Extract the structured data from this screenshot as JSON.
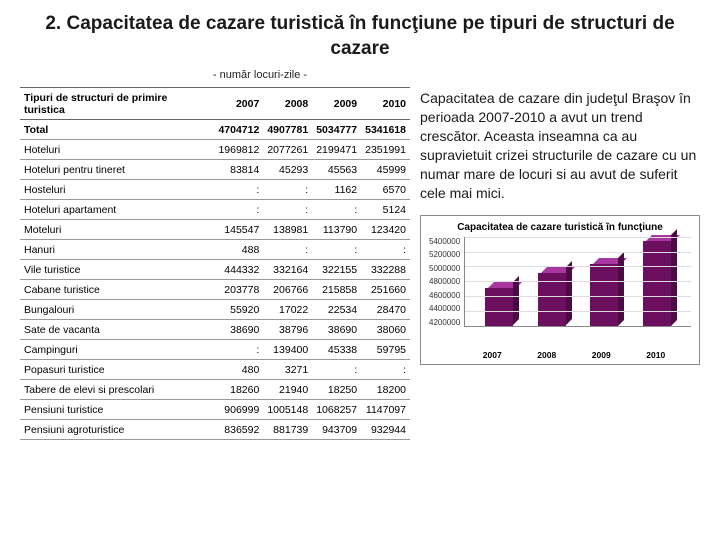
{
  "title": "2. Capacitatea de cazare turistică în funcţiune pe tipuri de structuri de cazare",
  "subtitle": "- număr locuri-zile -",
  "table": {
    "header_label": "Tipuri de structuri de primire turistica",
    "years": [
      "2007",
      "2008",
      "2009",
      "2010"
    ],
    "rows": [
      {
        "label": "Total",
        "vals": [
          "4704712",
          "4907781",
          "5034777",
          "5341618"
        ],
        "bold": true
      },
      {
        "label": "Hoteluri",
        "vals": [
          "1969812",
          "2077261",
          "2199471",
          "2351991"
        ]
      },
      {
        "label": "Hoteluri pentru tineret",
        "vals": [
          "83814",
          "45293",
          "45563",
          "45999"
        ]
      },
      {
        "label": "Hosteluri",
        "vals": [
          ":",
          ":",
          "1162",
          "6570"
        ]
      },
      {
        "label": "Hoteluri apartament",
        "vals": [
          ":",
          ":",
          ":",
          "5124"
        ]
      },
      {
        "label": "Moteluri",
        "vals": [
          "145547",
          "138981",
          "113790",
          "123420"
        ]
      },
      {
        "label": "Hanuri",
        "vals": [
          "488",
          ":",
          ":",
          ":"
        ]
      },
      {
        "label": "Vile turistice",
        "vals": [
          "444332",
          "332164",
          "322155",
          "332288"
        ]
      },
      {
        "label": "Cabane turistice",
        "vals": [
          "203778",
          "206766",
          "215858",
          "251660"
        ]
      },
      {
        "label": "Bungalouri",
        "vals": [
          "55920",
          "17022",
          "22534",
          "28470"
        ]
      },
      {
        "label": "Sate de vacanta",
        "vals": [
          "38690",
          "38796",
          "38690",
          "38060"
        ]
      },
      {
        "label": "Campinguri",
        "vals": [
          ":",
          "139400",
          "45338",
          "59795"
        ]
      },
      {
        "label": "Popasuri turistice",
        "vals": [
          "480",
          "3271",
          ":",
          ":"
        ]
      },
      {
        "label": "Tabere de elevi si prescolari",
        "vals": [
          "18260",
          "21940",
          "18250",
          "18200"
        ]
      },
      {
        "label": "Pensiuni turistice",
        "vals": [
          "906999",
          "1005148",
          "1068257",
          "1147097"
        ]
      },
      {
        "label": "Pensiuni agroturistice",
        "vals": [
          "836592",
          "881739",
          "943709",
          "932944"
        ]
      }
    ]
  },
  "body_text": "Capacitatea de cazare din judeţul Braşov în perioada 2007-2010 a avut un trend crescător. Aceasta inseamna ca au supravietuit crizei structurile de cazare cu un numar mare de locuri si au avut de suferit cele mai mici.",
  "chart": {
    "type": "bar",
    "title": "Capacitatea de cazare turistică în funcţiune",
    "categories": [
      "2007",
      "2008",
      "2009",
      "2010"
    ],
    "values": [
      4704712,
      4907781,
      5034777,
      5341618
    ],
    "bar_color": "#6b0f5e",
    "bar_top_color": "#a838a0",
    "bar_side_color": "#4a0a42",
    "ylim": [
      4200000,
      5400000
    ],
    "ytick_step": 200000,
    "yticks": [
      "5400000",
      "5200000",
      "5000000",
      "4800000",
      "4600000",
      "4400000",
      "4200000"
    ],
    "background_color": "#ffffff",
    "grid_color": "#dddddd",
    "title_fontsize": 10,
    "label_fontsize": 8
  }
}
